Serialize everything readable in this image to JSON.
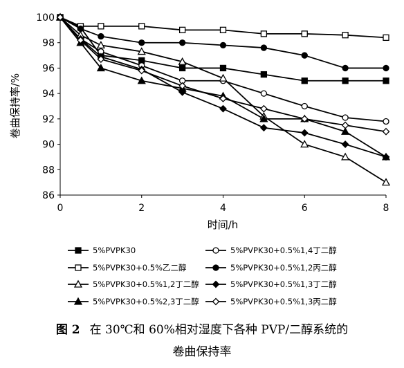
{
  "chart_data": {
    "type": "line",
    "x": [
      0,
      0.5,
      1,
      2,
      3,
      4,
      5,
      6,
      7,
      8
    ],
    "xticks": [
      0,
      2,
      4,
      6,
      8
    ],
    "xlim": [
      0,
      8
    ],
    "yticks": [
      86,
      88,
      90,
      92,
      94,
      96,
      98,
      100
    ],
    "ylim": [
      86,
      100
    ],
    "xlabel": "时间/h",
    "ylabel": "卷曲保持率/%",
    "grid": false,
    "legend_position": "bottom",
    "series": [
      {
        "name": "5%PVPK30",
        "marker": "square-filled",
        "values": [
          100,
          99.2,
          97,
          96.6,
          96,
          96,
          95.5,
          95,
          95,
          95
        ]
      },
      {
        "name": "5%PVPK30+0.5%1,4丁二醇",
        "marker": "circle-open",
        "values": [
          100,
          98.3,
          97.3,
          96.2,
          95,
          95,
          94,
          93,
          92.1,
          91.8
        ]
      },
      {
        "name": "5%PVPK30+0.5%乙二醇",
        "marker": "square-open",
        "values": [
          100,
          99.3,
          99.3,
          99.3,
          99,
          99,
          98.7,
          98.7,
          98.6,
          98.4
        ]
      },
      {
        "name": "5%PVPK30+0.5%1,2丙二醇",
        "marker": "circle-filled",
        "values": [
          100,
          99.1,
          98.5,
          98,
          98,
          97.8,
          97.6,
          97,
          96,
          96
        ]
      },
      {
        "name": "5%PVPK30+0.5%1,2丁二醇",
        "marker": "triangle-open",
        "values": [
          100,
          98.6,
          97.8,
          97.3,
          96.5,
          95.2,
          92.2,
          90,
          89,
          87
        ]
      },
      {
        "name": "5%PVPK30+0.5%1,3丁二醇",
        "marker": "diamond-filled",
        "values": [
          100,
          98.3,
          96.9,
          95.9,
          94.1,
          92.8,
          91.3,
          90.9,
          90,
          89
        ]
      },
      {
        "name": "5%PVPK30+0.5%2,3丁二醇",
        "marker": "triangle-filled",
        "values": [
          100,
          98,
          96,
          95,
          94.4,
          93.8,
          92,
          92,
          91,
          89
        ]
      },
      {
        "name": "5%PVPK30+0.5%1,3丙二醇",
        "marker": "diamond-open",
        "values": [
          100,
          98.2,
          96.7,
          95.8,
          94.6,
          93.6,
          92.8,
          92,
          91.5,
          91
        ]
      }
    ]
  },
  "caption": {
    "figure_label": "图 2",
    "line1": "在 30℃和 60%相对湿度下各种 PVP/二醇系统的",
    "line2": "卷曲保持率"
  }
}
